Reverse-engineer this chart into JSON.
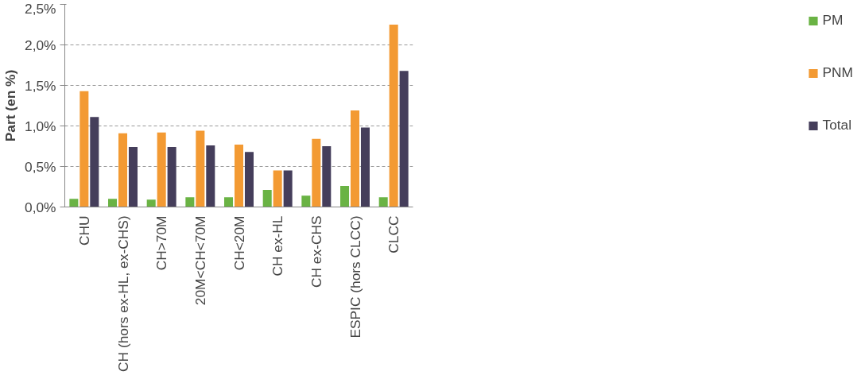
{
  "chart_data": {
    "type": "bar",
    "ylabel": "Part (en %)",
    "categories": [
      "CHU",
      "CH (hors ex-HL, ex-CHS)",
      "CH>70M",
      "20M<CH<70M",
      "CH<20M",
      "CH ex-HL",
      "CH ex-CHS",
      "ESPIC (hors CLCC)",
      "CLCC"
    ],
    "series": [
      {
        "name": "PM",
        "color": "#6ab344",
        "values": [
          0.1,
          0.1,
          0.09,
          0.12,
          0.12,
          0.21,
          0.14,
          0.26,
          0.12
        ]
      },
      {
        "name": "PNM",
        "color": "#f39a33",
        "values": [
          1.43,
          0.91,
          0.92,
          0.94,
          0.77,
          0.45,
          0.84,
          1.19,
          2.25
        ]
      },
      {
        "name": "Total",
        "color": "#453e5b",
        "values": [
          1.11,
          0.74,
          0.74,
          0.76,
          0.68,
          0.45,
          0.75,
          0.98,
          1.68
        ]
      }
    ],
    "ylim": [
      0,
      2.5
    ],
    "yticks": [
      {
        "value": 0,
        "label": "0,0%"
      },
      {
        "value": 0.5,
        "label": "0,5%"
      },
      {
        "value": 1,
        "label": "1,0%"
      },
      {
        "value": 1.5,
        "label": "1,5%"
      },
      {
        "value": 2,
        "label": "2,0%"
      },
      {
        "value": 2.5,
        "label": "2,5%"
      }
    ],
    "grid": "y",
    "legend": "right"
  }
}
